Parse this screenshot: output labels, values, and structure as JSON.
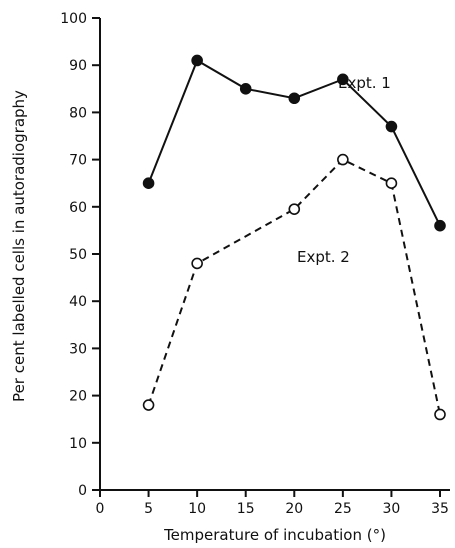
{
  "chart_data": {
    "type": "line",
    "title": "",
    "xlabel": "Temperature of incubation (°)",
    "ylabel": "Per cent labelled cells in autoradiography",
    "xlim": [
      0,
      35
    ],
    "ylim": [
      0,
      100
    ],
    "x_ticks": [
      0,
      5,
      10,
      15,
      20,
      25,
      30,
      35
    ],
    "y_ticks": [
      0,
      10,
      20,
      30,
      40,
      50,
      60,
      70,
      80,
      90,
      100
    ],
    "grid": false,
    "series": [
      {
        "name": "Expt. 1",
        "line_style": "solid",
        "marker": "filled-circle",
        "x": [
          5,
          10,
          15,
          20,
          25,
          30,
          35
        ],
        "y": [
          65,
          91,
          85,
          83,
          87,
          77,
          56
        ]
      },
      {
        "name": "Expt. 2",
        "line_style": "dashed",
        "marker": "open-circle",
        "x": [
          5,
          10,
          20,
          25,
          30,
          35
        ],
        "y": [
          18,
          48,
          59.5,
          70,
          65,
          16
        ]
      }
    ]
  }
}
